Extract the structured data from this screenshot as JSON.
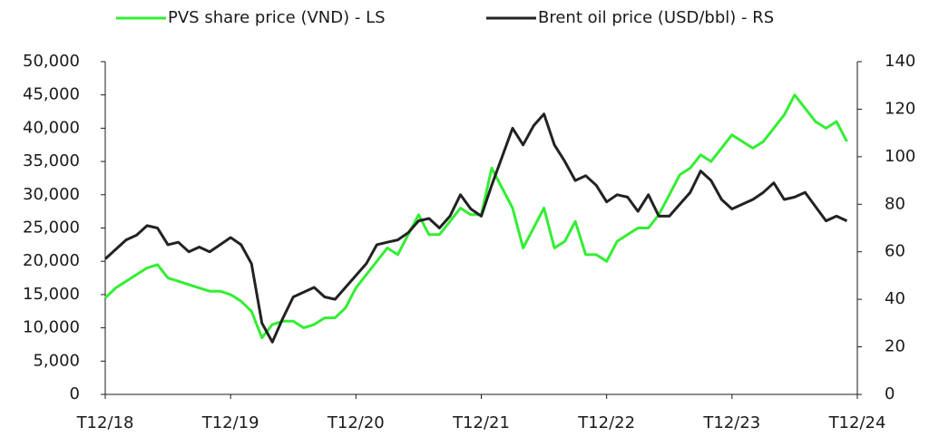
{
  "chart_data": {
    "type": "line",
    "x": [
      "2018-12",
      "2019-01",
      "2019-02",
      "2019-03",
      "2019-04",
      "2019-05",
      "2019-06",
      "2019-07",
      "2019-08",
      "2019-09",
      "2019-10",
      "2019-11",
      "2019-12",
      "2020-01",
      "2020-02",
      "2020-03",
      "2020-04",
      "2020-05",
      "2020-06",
      "2020-07",
      "2020-08",
      "2020-09",
      "2020-10",
      "2020-11",
      "2020-12",
      "2021-01",
      "2021-02",
      "2021-03",
      "2021-04",
      "2021-05",
      "2021-06",
      "2021-07",
      "2021-08",
      "2021-09",
      "2021-10",
      "2021-11",
      "2021-12",
      "2022-01",
      "2022-02",
      "2022-03",
      "2022-04",
      "2022-05",
      "2022-06",
      "2022-07",
      "2022-08",
      "2022-09",
      "2022-10",
      "2022-11",
      "2022-12",
      "2023-01",
      "2023-02",
      "2023-03",
      "2023-04",
      "2023-05",
      "2023-06",
      "2023-07",
      "2023-08",
      "2023-09",
      "2023-10",
      "2023-11",
      "2023-12",
      "2024-01",
      "2024-02",
      "2024-03",
      "2024-04",
      "2024-05",
      "2024-06",
      "2024-07",
      "2024-08",
      "2024-09",
      "2024-10",
      "2024-11"
    ],
    "series": [
      {
        "name": "PVS share price (VND) - LS",
        "color": "#33ee33",
        "axis": "y",
        "values": [
          14500,
          16000,
          17000,
          18000,
          19000,
          19500,
          17500,
          17000,
          16500,
          16000,
          15500,
          15500,
          15000,
          14000,
          12500,
          8500,
          10500,
          11000,
          11000,
          10000,
          10500,
          11500,
          11500,
          13000,
          16000,
          18000,
          20000,
          22000,
          21000,
          24000,
          27000,
          24000,
          24000,
          26000,
          28000,
          27000,
          27000,
          34000,
          31000,
          28000,
          22000,
          25000,
          28000,
          22000,
          23000,
          26000,
          21000,
          21000,
          20000,
          23000,
          24000,
          25000,
          25000,
          27000,
          30000,
          33000,
          34000,
          36000,
          35000,
          37000,
          39000,
          38000,
          37000,
          38000,
          40000,
          42000,
          45000,
          43000,
          41000,
          40000,
          41000,
          38000
        ]
      },
      {
        "name": "Brent oil price (USD/bbl) - RS",
        "color": "#222222",
        "axis": "y2",
        "values": [
          57,
          61,
          65,
          67,
          71,
          70,
          63,
          64,
          60,
          62,
          60,
          63,
          66,
          63,
          55,
          30,
          22,
          32,
          41,
          43,
          45,
          41,
          40,
          45,
          50,
          55,
          63,
          64,
          65,
          68,
          73,
          74,
          70,
          75,
          84,
          78,
          75,
          88,
          100,
          112,
          105,
          113,
          118,
          105,
          98,
          90,
          92,
          88,
          81,
          84,
          83,
          77,
          84,
          75,
          75,
          80,
          85,
          94,
          90,
          82,
          78,
          80,
          82,
          85,
          89,
          82,
          83,
          85,
          79,
          73,
          75,
          73
        ]
      }
    ],
    "xlim": [
      "2018-12",
      "2024-12"
    ],
    "xticks": [
      {
        "value": "2018-12",
        "label": "T12/18"
      },
      {
        "value": "2019-12",
        "label": "T12/19"
      },
      {
        "value": "2020-12",
        "label": "T12/20"
      },
      {
        "value": "2021-12",
        "label": "T12/21"
      },
      {
        "value": "2022-12",
        "label": "T12/22"
      },
      {
        "value": "2023-12",
        "label": "T12/23"
      },
      {
        "value": "2024-12",
        "label": "T12/24"
      }
    ],
    "ylim": [
      0,
      50000
    ],
    "yticks": [
      0,
      {
        "value": 5000,
        "label": "5,000"
      },
      {
        "value": 10000,
        "label": "10,000"
      },
      {
        "value": 15000,
        "label": "15,000"
      },
      {
        "value": 20000,
        "label": "20,000"
      },
      {
        "value": 25000,
        "label": "25,000"
      },
      {
        "value": 30000,
        "label": "30,000"
      },
      {
        "value": 35000,
        "label": "35,000"
      },
      {
        "value": 40000,
        "label": "40,000"
      },
      {
        "value": 45000,
        "label": "45,000"
      },
      {
        "value": 50000,
        "label": "50,000"
      }
    ],
    "y2lim": [
      0,
      140
    ],
    "y2ticks": [
      0,
      20,
      40,
      60,
      80,
      100,
      120,
      140
    ],
    "legend": "top"
  }
}
